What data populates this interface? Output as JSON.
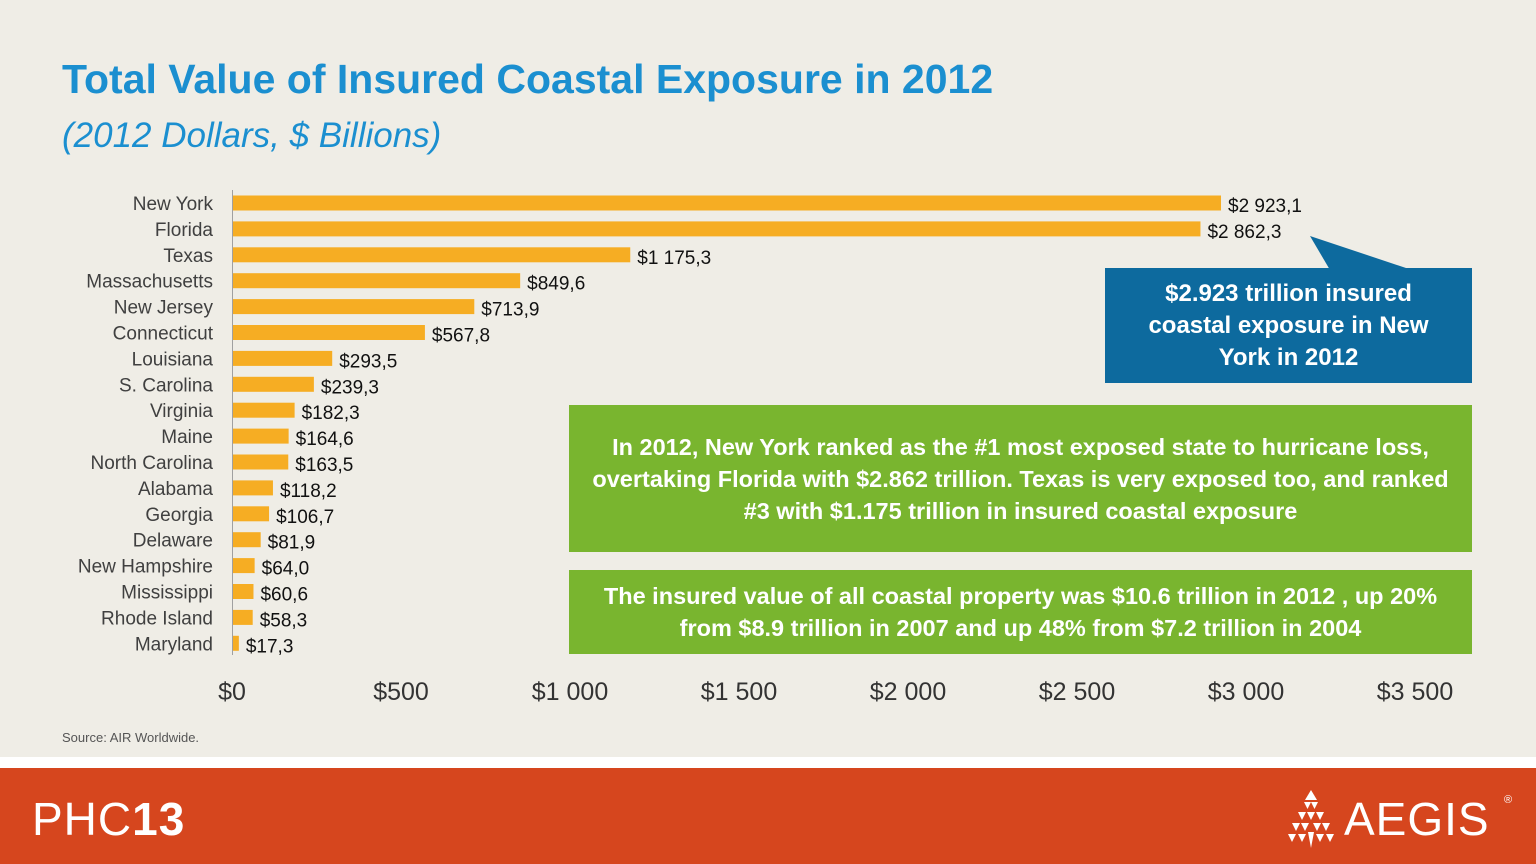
{
  "title": "Total Value of Insured Coastal Exposure in 2012",
  "subtitle": "(2012 Dollars, $ Billions)",
  "source": "Source: AIR Worldwide.",
  "callouts": {
    "ny": "$2.923 trillion insured coastal exposure in New York in 2012",
    "ranking": "In 2012, New York ranked as the #1 most exposed state to hurricane loss, overtaking Florida with $2.862 trillion. Texas is very exposed too, and ranked #3 with $1.175 trillion in insured coastal exposure",
    "total": "The insured value of all coastal property was $10.6 trillion in 2012 , up 20% from $8.9 trillion in 2007 and up 48% from $7.2 trillion in 2004"
  },
  "footer": {
    "event_light": "PHC",
    "event_bold": "13",
    "brand": "AEGIS",
    "brand_mark": "®"
  },
  "colors": {
    "bar": "#f6ad23",
    "title": "#1b8fd0",
    "callout_blue": "#0d6a9e",
    "callout_green": "#79b52f",
    "footer": "#d6461e"
  },
  "chart_data": {
    "type": "bar",
    "orientation": "horizontal",
    "categories": [
      "New York",
      "Florida",
      "Texas",
      "Massachusetts",
      "New Jersey",
      "Connecticut",
      "Louisiana",
      "S. Carolina",
      "Virginia",
      "Maine",
      "North Carolina",
      "Alabama",
      "Georgia",
      "Delaware",
      "New Hampshire",
      "Mississippi",
      "Rhode Island",
      "Maryland"
    ],
    "values": [
      2923.1,
      2862.3,
      1175.3,
      849.6,
      713.9,
      567.8,
      293.5,
      239.3,
      182.3,
      164.6,
      163.5,
      118.2,
      106.7,
      81.9,
      64.0,
      60.6,
      58.3,
      17.3
    ],
    "data_labels": [
      "$2 923,1",
      "$2 862,3",
      "$1 175,3",
      "$849,6",
      "$713,9",
      "$567,8",
      "$293,5",
      "$239,3",
      "$182,3",
      "$164,6",
      "$163,5",
      "$118,2",
      "$106,7",
      "$81,9",
      "$64,0",
      "$60,6",
      "$58,3",
      "$17,3"
    ],
    "x_ticks": [
      0,
      500,
      1000,
      1500,
      2000,
      2500,
      3000,
      3500
    ],
    "x_tick_labels": [
      "$0",
      "$500",
      "$1 000",
      "$1 500",
      "$2 000",
      "$2 500",
      "$3 000",
      "$3 500"
    ],
    "xlim": [
      0,
      3500
    ],
    "grid": false,
    "legend": "none"
  }
}
